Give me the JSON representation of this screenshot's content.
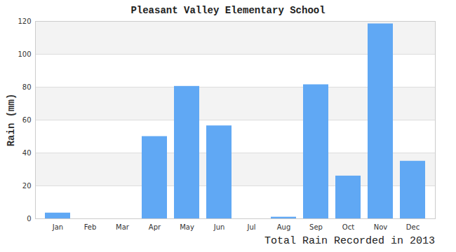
{
  "chart_data": {
    "type": "bar",
    "title": "Pleasant Valley Elementary School",
    "subtitle": "Total Rain Recorded in 2013",
    "y_label": "Rain (mm)",
    "categories": [
      "Jan",
      "Feb",
      "Mar",
      "Apr",
      "May",
      "Jun",
      "Jul",
      "Aug",
      "Sep",
      "Oct",
      "Nov",
      "Dec"
    ],
    "values": [
      3.5,
      0,
      0,
      50,
      80.5,
      56.5,
      0,
      1,
      81.5,
      26,
      118.5,
      35
    ],
    "color": "#60a8f4",
    "ylim": [
      0,
      120
    ],
    "yticks": [
      0,
      20,
      40,
      60,
      80,
      100,
      120
    ],
    "grid": true
  }
}
